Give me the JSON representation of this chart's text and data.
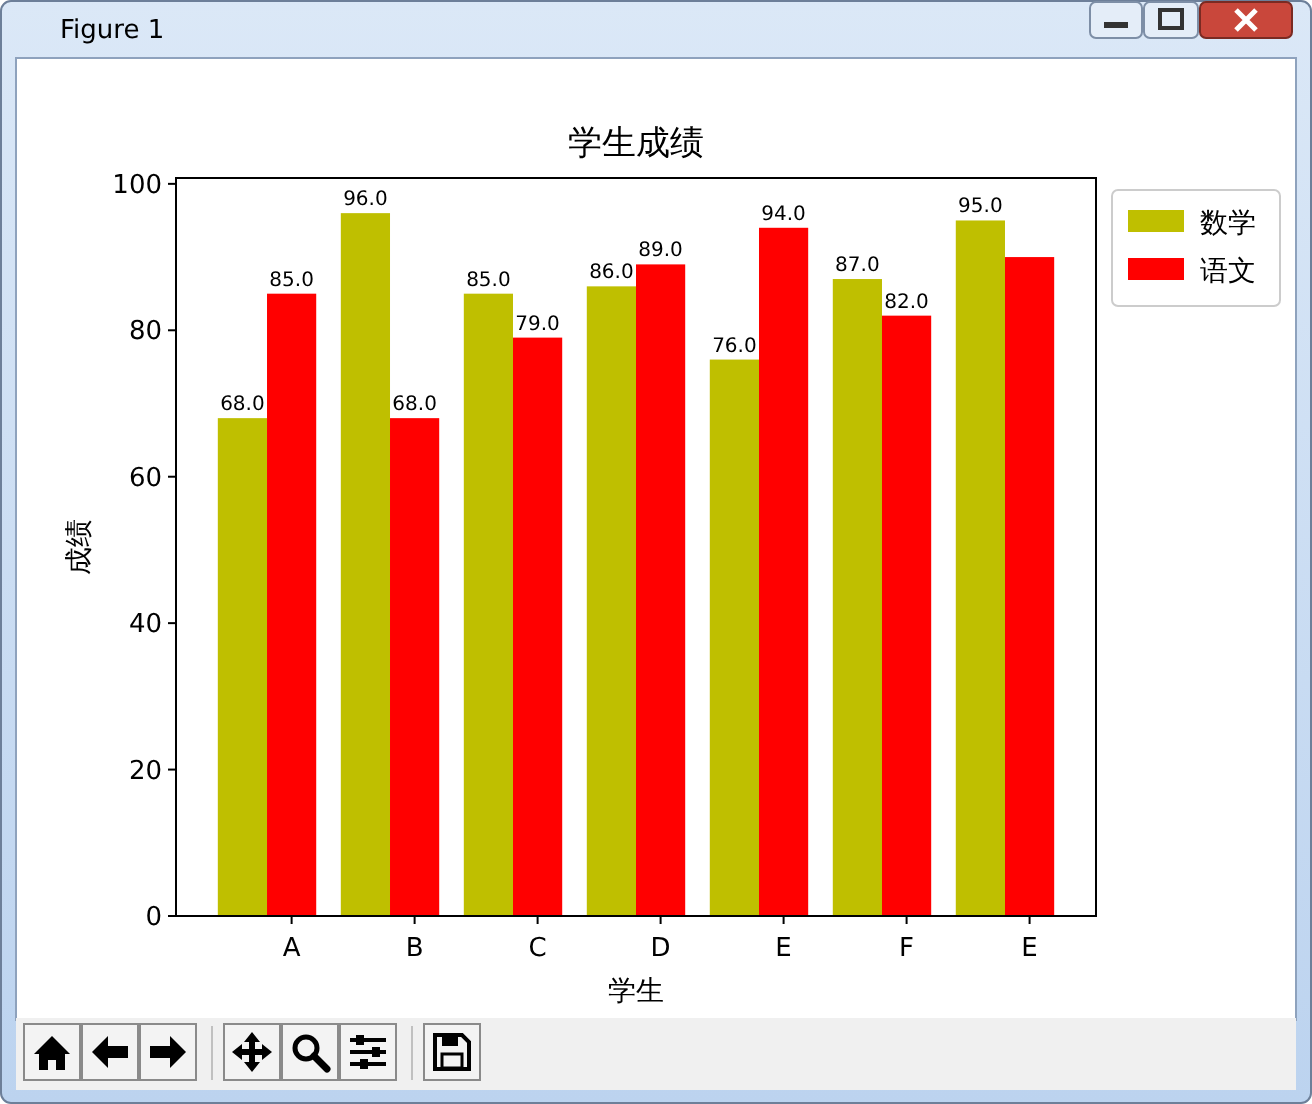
{
  "chart_data": {
    "type": "bar",
    "title": "学生成绩",
    "xlabel": "学生",
    "ylabel": "成绩",
    "annotations": [
      "Figure 1"
    ],
    "categories": [
      "A",
      "B",
      "C",
      "D",
      "E",
      "F",
      "E"
    ],
    "series": [
      {
        "name": "数学",
        "color": "#bfbf00",
        "values": [
          68,
          96,
          85,
          86,
          76,
          87,
          95
        ],
        "value_labels": [
          "68.0",
          "96.0",
          "85.0",
          "86.0",
          "76.0",
          "87.0",
          "95.0"
        ]
      },
      {
        "name": "语文",
        "color": "#ff0000",
        "values": [
          85,
          68,
          79,
          89,
          94,
          82,
          90
        ],
        "value_labels": [
          "85.0",
          "68.0",
          "79.0",
          "89.0",
          "94.0",
          "82.0",
          null
        ]
      }
    ],
    "ylim": [
      0,
      100.8
    ],
    "yticks": [
      0,
      20,
      40,
      60,
      80,
      100
    ],
    "legend": "right"
  }
}
